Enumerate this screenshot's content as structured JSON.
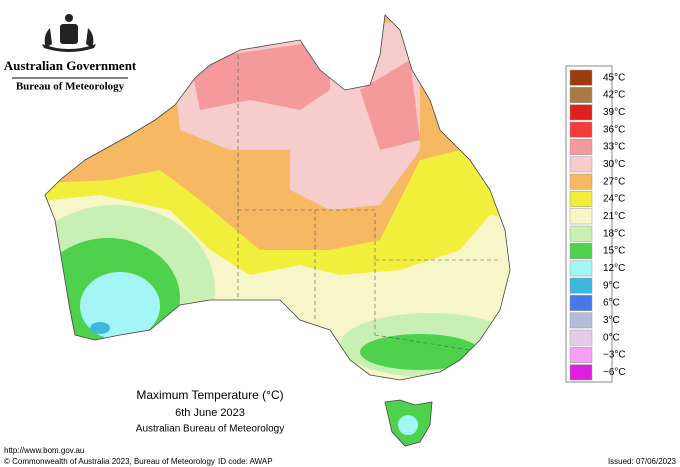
{
  "header": {
    "government": "Australian Government",
    "bureau": "Bureau of Meteorology"
  },
  "map": {
    "title": "Maximum Temperature (°C)",
    "date": "6th June 2023",
    "source": "Australian Bureau of Meteorology"
  },
  "legend": {
    "entries": [
      {
        "label": "45°C",
        "color": "#9b3d10"
      },
      {
        "label": "42°C",
        "color": "#a87a45"
      },
      {
        "label": "39°C",
        "color": "#e01f1f"
      },
      {
        "label": "36°C",
        "color": "#f43c3c"
      },
      {
        "label": "33°C",
        "color": "#f49a9a"
      },
      {
        "label": "30°C",
        "color": "#f6cccc"
      },
      {
        "label": "27°C",
        "color": "#f6b862"
      },
      {
        "label": "24°C",
        "color": "#f2ee3c"
      },
      {
        "label": "21°C",
        "color": "#f6f6c8"
      },
      {
        "label": "18°C",
        "color": "#c8f0b4"
      },
      {
        "label": "15°C",
        "color": "#4ed24e"
      },
      {
        "label": "12°C",
        "color": "#a4f6f6"
      },
      {
        "label": "9°C",
        "color": "#3cb8e0"
      },
      {
        "label": "6°C",
        "color": "#4a78e8"
      },
      {
        "label": "3°C",
        "color": "#b4bcd8"
      },
      {
        "label": "0°C",
        "color": "#e4cce8"
      },
      {
        "label": "−3°C",
        "color": "#f4a0f4"
      },
      {
        "label": "−6°C",
        "color": "#e020e0"
      }
    ]
  },
  "footer": {
    "url": "http://www.bom.gov.au",
    "copyright": "© Commonwealth of Australia 2023, Bureau of Meteorology",
    "id_code": "ID code: AWAP",
    "issued": "Issued: 07/06/2023"
  }
}
